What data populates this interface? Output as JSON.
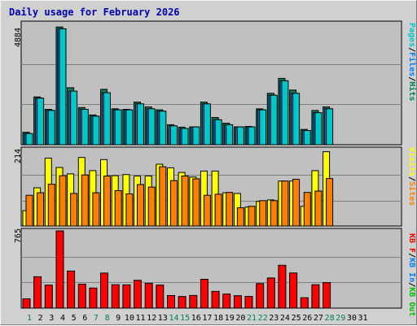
{
  "title": "Daily usage for February 2026",
  "colors": {
    "hits": "#00805c",
    "files": "#0080ff",
    "pages": "#00c8c8",
    "visits": "#ffff00",
    "sites": "#ff8000",
    "kb_in": "#0080ff",
    "kb_out": "#00c000",
    "kb_f": "#ff0000",
    "plot_bg": "#c0c0c0",
    "frame_bg": "#d0d0d0",
    "title": "#0000b4"
  },
  "right_labels": {
    "top": [
      {
        "text": "Pages",
        "color": "#00c8c8"
      },
      {
        "text": "/",
        "color": "#000000"
      },
      {
        "text": "Files",
        "color": "#0080ff"
      },
      {
        "text": "/",
        "color": "#000000"
      },
      {
        "text": "Hits",
        "color": "#00805c"
      }
    ],
    "mid": [
      {
        "text": "Visits",
        "color": "#ffff00"
      },
      {
        "text": "/",
        "color": "#000000"
      },
      {
        "text": "Sites",
        "color": "#ff8000"
      }
    ],
    "bot": [
      {
        "text": "KB F",
        "color": "#ff0000"
      },
      {
        "text": "/",
        "color": "#000000"
      },
      {
        "text": "KB In",
        "color": "#0080ff"
      },
      {
        "text": "/",
        "color": "#000000"
      },
      {
        "text": "KB Out",
        "color": "#00c000"
      }
    ]
  },
  "chart_data": [
    {
      "type": "bar",
      "panel": "hits-files-pages",
      "ymax_label": "4884",
      "ylim": [
        0,
        4884
      ],
      "categories": [
        "1",
        "2",
        "3",
        "4",
        "5",
        "6",
        "7",
        "8",
        "9",
        "10",
        "11",
        "12",
        "13",
        "14",
        "15",
        "16",
        "17",
        "18",
        "19",
        "20",
        "21",
        "22",
        "23",
        "24",
        "25",
        "26",
        "27",
        "28"
      ],
      "series": [
        {
          "name": "Hits",
          "values": [
            501,
            1927,
            1427,
            4746,
            2297,
            1499,
            1200,
            2232,
            1449,
            1427,
            1719,
            1523,
            1406,
            807,
            707,
            718,
            1719,
            1099,
            868,
            718,
            739,
            1447,
            2073,
            2676,
            2204,
            615,
            1380,
            1523
          ]
        },
        {
          "name": "Files",
          "values": [
            451,
            1877,
            1384,
            4674,
            2160,
            1427,
            1149,
            2094,
            1406,
            1406,
            1645,
            1449,
            1355,
            761,
            657,
            718,
            1645,
            1007,
            807,
            718,
            718,
            1406,
            1992,
            2581,
            2073,
            573,
            1290,
            1449
          ]
        },
        {
          "name": "Pages",
          "values": [
            451,
            1877,
            1384,
            4674,
            2160,
            1427,
            1149,
            2094,
            1406,
            1406,
            1645,
            1449,
            1355,
            761,
            657,
            718,
            1645,
            1007,
            807,
            718,
            718,
            1406,
            1992,
            2581,
            2073,
            573,
            1290,
            1449
          ]
        }
      ]
    },
    {
      "type": "bar",
      "panel": "visits-sites",
      "ymax_label": "214",
      "ylim": [
        0,
        214
      ],
      "categories": [
        "1",
        "2",
        "3",
        "4",
        "5",
        "6",
        "7",
        "8",
        "9",
        "10",
        "11",
        "12",
        "13",
        "14",
        "15",
        "16",
        "17",
        "18",
        "19",
        "20",
        "21",
        "22",
        "23",
        "24",
        "25",
        "26",
        "27",
        "28"
      ],
      "series": [
        {
          "name": "Visits",
          "values": [
            43,
            107,
            190,
            164,
            146,
            192,
            155,
            186,
            141,
            144,
            140,
            140,
            173,
            163,
            150,
            137,
            154,
            154,
            93,
            91,
            53,
            69,
            73,
            126,
            126,
            55,
            155,
            208
          ]
        },
        {
          "name": "Sites",
          "values": [
            86,
            93,
            117,
            141,
            91,
            143,
            93,
            140,
            99,
            90,
            116,
            109,
            166,
            127,
            140,
            132,
            86,
            89,
            94,
            51,
            55,
            71,
            71,
            126,
            131,
            94,
            98,
            133
          ]
        }
      ]
    },
    {
      "type": "bar",
      "panel": "kb",
      "ymax_label": "765",
      "ylim": [
        0,
        765
      ],
      "categories": [
        "1",
        "2",
        "3",
        "4",
        "5",
        "6",
        "7",
        "8",
        "9",
        "10",
        "11",
        "12",
        "13",
        "14",
        "15",
        "16",
        "17",
        "18",
        "19",
        "20",
        "21",
        "22",
        "23",
        "24",
        "25",
        "26",
        "27",
        "28"
      ],
      "series": [
        {
          "name": "KB F",
          "values": [
            92,
            311,
            228,
            765,
            367,
            237,
            199,
            347,
            232,
            230,
            275,
            245,
            228,
            125,
            115,
            126,
            286,
            166,
            139,
            123,
            116,
            243,
            299,
            424,
            348,
            103,
            232,
            253
          ]
        },
        {
          "name": "KB In",
          "values": [
            0,
            0,
            0,
            0,
            0,
            0,
            0,
            0,
            0,
            0,
            0,
            0,
            0,
            0,
            0,
            0,
            0,
            0,
            0,
            0,
            0,
            0,
            0,
            0,
            0,
            0,
            0,
            0
          ]
        },
        {
          "name": "KB Out",
          "values": [
            0,
            0,
            0,
            0,
            0,
            0,
            0,
            0,
            0,
            0,
            0,
            0,
            0,
            0,
            0,
            0,
            0,
            0,
            0,
            0,
            0,
            0,
            0,
            0,
            0,
            0,
            0,
            0
          ]
        }
      ]
    }
  ],
  "x_days": [
    {
      "label": "1",
      "weekend": true
    },
    {
      "label": "2",
      "weekend": false
    },
    {
      "label": "3",
      "weekend": false
    },
    {
      "label": "4",
      "weekend": false
    },
    {
      "label": "5",
      "weekend": false
    },
    {
      "label": "6",
      "weekend": false
    },
    {
      "label": "7",
      "weekend": true
    },
    {
      "label": "8",
      "weekend": true
    },
    {
      "label": "9",
      "weekend": false
    },
    {
      "label": "10",
      "weekend": false
    },
    {
      "label": "11",
      "weekend": false
    },
    {
      "label": "12",
      "weekend": false
    },
    {
      "label": "13",
      "weekend": false
    },
    {
      "label": "14",
      "weekend": true
    },
    {
      "label": "15",
      "weekend": true
    },
    {
      "label": "16",
      "weekend": false
    },
    {
      "label": "17",
      "weekend": false
    },
    {
      "label": "18",
      "weekend": false
    },
    {
      "label": "19",
      "weekend": false
    },
    {
      "label": "20",
      "weekend": false
    },
    {
      "label": "21",
      "weekend": true
    },
    {
      "label": "22",
      "weekend": true
    },
    {
      "label": "23",
      "weekend": false
    },
    {
      "label": "24",
      "weekend": false
    },
    {
      "label": "25",
      "weekend": false
    },
    {
      "label": "26",
      "weekend": false
    },
    {
      "label": "27",
      "weekend": false
    },
    {
      "label": "28",
      "weekend": true
    },
    {
      "label": "29",
      "weekend": true
    },
    {
      "label": "30",
      "weekend": false
    },
    {
      "label": "31",
      "weekend": false
    }
  ]
}
